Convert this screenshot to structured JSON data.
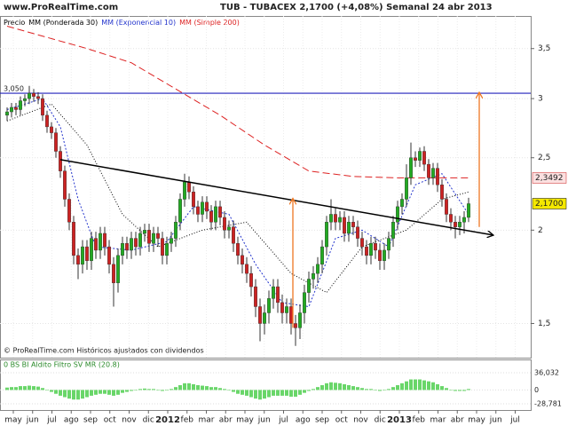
{
  "chart_data": [
    {
      "type": "candlestick",
      "site": "www.ProRealTime.com",
      "title": "TUB - TUBACEX   2,1700 (+4,08%)   Semanal  24 abr 2013",
      "price_label": "Precio",
      "footer": "© ProRealTime.com Históricos ajustados con dividendos",
      "log_scale": true,
      "grid": true,
      "ylim": [
        1.35,
        3.87
      ],
      "yticks": [
        {
          "value": 3.5,
          "label": "3,5"
        },
        3,
        {
          "value": 2.5,
          "label": "2,5"
        },
        2,
        {
          "value": 1.5,
          "label": "1,5"
        }
      ],
      "xlim": [
        -1.6,
        118
      ],
      "xticks": [
        {
          "value": 1.4,
          "label": "may"
        },
        {
          "value": 5.75,
          "label": "jun"
        },
        {
          "value": 10.1,
          "label": "jul"
        },
        {
          "value": 14.45,
          "label": "ago"
        },
        {
          "value": 18.8,
          "label": "sep"
        },
        {
          "value": 23.15,
          "label": "oct"
        },
        {
          "value": 27.5,
          "label": "nov"
        },
        {
          "value": 31.85,
          "label": "dic"
        },
        {
          "value": 36.2,
          "label": "2012"
        },
        {
          "value": 40.55,
          "label": "feb"
        },
        {
          "value": 44.9,
          "label": "mar"
        },
        {
          "value": 49.25,
          "label": "abr"
        },
        {
          "value": 53.6,
          "label": "may"
        },
        {
          "value": 57.95,
          "label": "jun"
        },
        {
          "value": 62.3,
          "label": "jul"
        },
        {
          "value": 66.65,
          "label": "ago"
        },
        {
          "value": 71,
          "label": "sep"
        },
        {
          "value": 75.35,
          "label": "oct"
        },
        {
          "value": 79.7,
          "label": "nov"
        },
        {
          "value": 84.05,
          "label": "dic"
        },
        {
          "value": 88.4,
          "label": "2013"
        },
        {
          "value": 92.75,
          "label": "feb"
        },
        {
          "value": 97.1,
          "label": "mar"
        },
        {
          "value": 101.45,
          "label": "abr"
        },
        {
          "value": 105.8,
          "label": "may"
        },
        {
          "value": 110.15,
          "label": "jun"
        },
        {
          "value": 114.5,
          "label": "jul"
        }
      ],
      "up_color": "#22aa22",
      "down_color": "#cc2222",
      "candles": {
        "open": [
          2.85,
          2.88,
          2.92,
          2.9,
          2.98,
          3.0,
          3.05,
          3.02,
          3.0,
          2.85,
          2.75,
          2.7,
          2.55,
          2.4,
          2.2,
          2.05,
          1.85,
          1.8,
          1.9,
          1.82,
          1.95,
          1.88,
          1.98,
          1.9,
          1.8,
          1.7,
          1.85,
          1.92,
          1.88,
          1.95,
          1.9,
          1.98,
          2.0,
          1.92,
          1.98,
          1.95,
          1.85,
          1.92,
          1.95,
          2.05,
          2.2,
          2.32,
          2.25,
          2.15,
          2.1,
          2.18,
          2.12,
          2.05,
          2.15,
          2.08,
          2.0,
          2.02,
          1.92,
          1.85,
          1.8,
          1.75,
          1.68,
          1.58,
          1.5,
          1.55,
          1.62,
          1.68,
          1.6,
          1.55,
          1.58,
          1.5,
          1.48,
          1.55,
          1.65,
          1.72,
          1.75,
          1.8,
          1.9,
          2.05,
          2.1,
          2.05,
          2.08,
          1.98,
          2.05,
          2.02,
          1.95,
          1.9,
          1.85,
          1.92,
          1.88,
          1.82,
          1.88,
          1.95,
          2.05,
          2.15,
          2.2,
          2.35,
          2.5,
          2.48,
          2.55,
          2.45,
          2.35,
          2.42,
          2.3,
          2.2,
          2.1,
          2.05,
          2.02,
          2.05,
          2.08
        ],
        "high": [
          2.92,
          2.96,
          2.96,
          3.02,
          3.04,
          3.12,
          3.09,
          3.06,
          3.04,
          2.89,
          2.79,
          2.74,
          2.59,
          2.44,
          2.24,
          2.09,
          1.89,
          1.94,
          1.94,
          1.99,
          1.99,
          2.02,
          2.02,
          1.94,
          1.84,
          1.89,
          1.96,
          1.96,
          1.99,
          1.99,
          2.02,
          2.04,
          2.04,
          2.02,
          2.02,
          1.99,
          1.96,
          1.99,
          2.09,
          2.24,
          2.38,
          2.36,
          2.29,
          2.19,
          2.22,
          2.22,
          2.16,
          2.19,
          2.19,
          2.12,
          2.06,
          2.06,
          1.96,
          1.89,
          1.84,
          1.79,
          1.72,
          1.62,
          1.59,
          1.66,
          1.72,
          1.72,
          1.64,
          1.62,
          1.62,
          1.54,
          1.59,
          1.69,
          1.76,
          1.79,
          1.84,
          1.94,
          2.09,
          2.2,
          2.14,
          2.12,
          2.12,
          2.09,
          2.09,
          2.06,
          1.99,
          1.94,
          1.96,
          1.96,
          1.92,
          1.92,
          1.99,
          2.09,
          2.19,
          2.24,
          2.45,
          2.62,
          2.55,
          2.58,
          2.59,
          2.49,
          2.46,
          2.46,
          2.34,
          2.24,
          2.14,
          2.09,
          2.09,
          2.12,
          2.21
        ],
        "low": [
          2.8,
          2.83,
          2.85,
          2.85,
          2.93,
          2.95,
          2.97,
          2.95,
          2.8,
          2.7,
          2.65,
          2.5,
          2.35,
          2.15,
          2.0,
          1.8,
          1.72,
          1.75,
          1.77,
          1.77,
          1.83,
          1.83,
          1.85,
          1.75,
          1.58,
          1.65,
          1.8,
          1.83,
          1.83,
          1.85,
          1.85,
          1.93,
          1.87,
          1.87,
          1.9,
          1.8,
          1.8,
          1.87,
          1.9,
          2.0,
          2.15,
          2.2,
          2.1,
          2.05,
          2.05,
          2.07,
          2.0,
          2.0,
          2.03,
          1.95,
          1.95,
          1.87,
          1.8,
          1.75,
          1.7,
          1.63,
          1.53,
          1.42,
          1.45,
          1.5,
          1.57,
          1.55,
          1.5,
          1.5,
          1.45,
          1.4,
          1.43,
          1.5,
          1.6,
          1.67,
          1.7,
          1.75,
          1.85,
          2.0,
          2.0,
          2.0,
          1.93,
          1.93,
          1.97,
          1.9,
          1.85,
          1.8,
          1.8,
          1.83,
          1.77,
          1.77,
          1.83,
          1.9,
          2.0,
          2.1,
          2.15,
          2.3,
          2.43,
          2.43,
          2.4,
          2.3,
          2.3,
          2.25,
          2.15,
          2.05,
          2.0,
          1.95,
          1.97,
          1.98,
          2.05
        ],
        "close": [
          2.88,
          2.92,
          2.9,
          2.98,
          3.0,
          3.05,
          3.02,
          3.0,
          2.85,
          2.75,
          2.7,
          2.55,
          2.4,
          2.2,
          2.05,
          1.85,
          1.8,
          1.9,
          1.82,
          1.95,
          1.88,
          1.98,
          1.9,
          1.8,
          1.7,
          1.85,
          1.92,
          1.88,
          1.95,
          1.9,
          1.98,
          2.0,
          1.92,
          1.98,
          1.95,
          1.85,
          1.92,
          1.95,
          2.05,
          2.2,
          2.32,
          2.25,
          2.15,
          2.1,
          2.18,
          2.12,
          2.05,
          2.15,
          2.08,
          2.0,
          2.02,
          1.92,
          1.85,
          1.8,
          1.75,
          1.68,
          1.58,
          1.5,
          1.55,
          1.62,
          1.68,
          1.6,
          1.55,
          1.58,
          1.5,
          1.48,
          1.55,
          1.65,
          1.72,
          1.75,
          1.8,
          1.9,
          2.05,
          2.1,
          2.05,
          2.08,
          1.98,
          2.05,
          2.02,
          1.95,
          1.9,
          1.85,
          1.92,
          1.88,
          1.82,
          1.88,
          1.95,
          2.05,
          2.15,
          2.2,
          2.35,
          2.5,
          2.48,
          2.55,
          2.45,
          2.35,
          2.42,
          2.3,
          2.2,
          2.1,
          2.05,
          2.02,
          2.05,
          2.08,
          2.17
        ]
      },
      "series": [
        {
          "name": "MM (Ponderada 30)",
          "color": "#000000",
          "dash": "1 2",
          "x": [
            0,
            10,
            18,
            26,
            34,
            44,
            54,
            64,
            72,
            80,
            90,
            98,
            104
          ],
          "values": [
            2.8,
            2.95,
            2.6,
            2.1,
            1.9,
            2.0,
            2.05,
            1.75,
            1.65,
            1.9,
            2.0,
            2.2,
            2.25
          ]
        },
        {
          "name": "MM (Exponencial 10)",
          "color": "#2233cc",
          "dash": "2 2",
          "x": [
            0,
            8,
            12,
            16,
            20,
            28,
            36,
            42,
            50,
            56,
            62,
            68,
            74,
            80,
            86,
            92,
            98,
            104
          ],
          "values": [
            2.9,
            3.0,
            2.75,
            2.2,
            1.9,
            1.88,
            1.93,
            2.15,
            2.1,
            1.8,
            1.6,
            1.58,
            1.95,
            2.0,
            1.9,
            2.3,
            2.38,
            2.1
          ]
        },
        {
          "name": "MM (Simple 200)",
          "color": "#dd2222",
          "dash": "8 4",
          "x": [
            0,
            18,
            28,
            48,
            58,
            68,
            78,
            88,
            104
          ],
          "values": [
            3.75,
            3.5,
            3.35,
            2.85,
            2.6,
            2.4,
            2.36,
            2.35,
            2.35
          ]
        }
      ],
      "hline": {
        "value": 3.05,
        "label": "3,050",
        "color": "#2222bb"
      },
      "trendline": {
        "color": "#000000",
        "x": [
          12,
          109.4
        ],
        "values": [
          2.485,
          1.97
        ]
      },
      "arrows": [
        {
          "color": "#ee7722",
          "x": [
            64.4,
            64.4
          ],
          "values": [
            1.48,
            2.2
          ]
        },
        {
          "color": "#ee7722",
          "x": [
            106.4,
            106.4
          ],
          "values": [
            2.02,
            3.05
          ]
        }
      ],
      "price_labels": [
        {
          "value": 2.3492,
          "label": "2,3492",
          "color": "#cc2222",
          "background": "#fbe0e0"
        },
        {
          "value": 2.17,
          "label": "2,1700",
          "color": "#000000",
          "background": "#f4e800"
        }
      ]
    },
    {
      "type": "bar",
      "title": "0 BS BI Aldito Filtro SV MR (20.8)",
      "color": "#44cc44",
      "xlim": [
        -1.6,
        118
      ],
      "ylim": [
        -40,
        60
      ],
      "yticks": [
        {
          "value": 36.032,
          "label": "36,032"
        },
        0,
        {
          "value": -28.781,
          "label": "-28,781"
        }
      ],
      "values": [
        5,
        6,
        6,
        8,
        8,
        9,
        8,
        7,
        4,
        0,
        -4,
        -8,
        -12,
        -15,
        -18,
        -20,
        -20,
        -18,
        -15,
        -12,
        -10,
        -8,
        -8,
        -10,
        -12,
        -10,
        -6,
        -4,
        -2,
        0,
        2,
        3,
        2,
        2,
        0,
        -2,
        -1,
        2,
        6,
        10,
        14,
        14,
        12,
        10,
        9,
        8,
        6,
        6,
        4,
        2,
        0,
        -4,
        -8,
        -10,
        -12,
        -15,
        -18,
        -20,
        -18,
        -15,
        -12,
        -12,
        -12,
        -12,
        -14,
        -14,
        -10,
        -6,
        -2,
        2,
        6,
        10,
        14,
        16,
        15,
        14,
        12,
        10,
        8,
        6,
        4,
        2,
        2,
        0,
        -2,
        0,
        2,
        6,
        10,
        14,
        18,
        22,
        22,
        22,
        20,
        18,
        16,
        12,
        8,
        4,
        0,
        -2,
        -2,
        -2,
        2
      ]
    }
  ]
}
